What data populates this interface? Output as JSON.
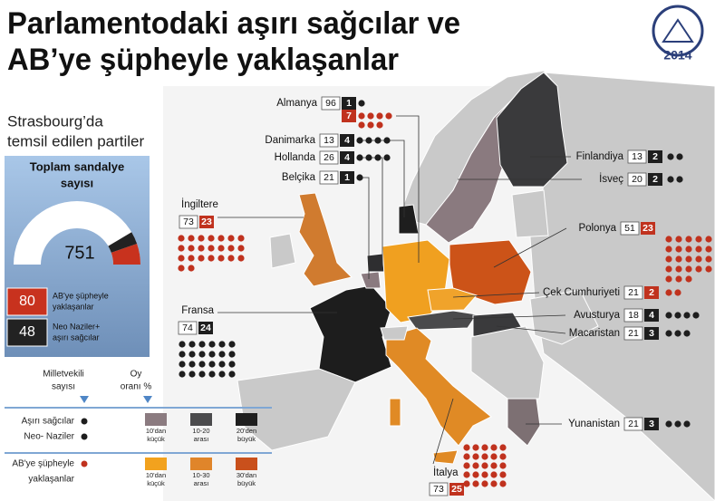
{
  "header": {
    "title_line1": "Parlamentodaki aşırı sağcılar ve",
    "title_line2": "AB’ye şüpheyle yaklaşanlar",
    "logo_year": "2014"
  },
  "sidebar": {
    "subtitle_line1": "Strasbourg’da",
    "subtitle_line2": "temsil edilen partiler",
    "gauge_title_line1": "Toplam sandalye",
    "gauge_title_line2": "sayısı",
    "total": 751,
    "groups": [
      {
        "value": 80,
        "label_line1": "AB'ye şüpheyle",
        "label_line2": "yaklaşanlar",
        "color": "#c8321e"
      },
      {
        "value": 48,
        "label_line1": "Neo Naziler+",
        "label_line2": "aşırı sağcılar",
        "color": "#222222"
      }
    ]
  },
  "countries": [
    {
      "name": "Almanya",
      "seats": 96,
      "groups": [
        {
          "value": 1,
          "color": "#1e1e1e"
        },
        {
          "value": 7,
          "color": "#c0321e"
        }
      ]
    },
    {
      "name": "Danimarka",
      "seats": 13,
      "groups": [
        {
          "value": 4,
          "color": "#1e1e1e"
        }
      ]
    },
    {
      "name": "Hollanda",
      "seats": 26,
      "groups": [
        {
          "value": 4,
          "color": "#1e1e1e"
        }
      ]
    },
    {
      "name": "Belçika",
      "seats": 21,
      "groups": [
        {
          "value": 1,
          "color": "#1e1e1e"
        }
      ]
    },
    {
      "name": "İngiltere",
      "seats": 73,
      "groups": [
        {
          "value": 23,
          "color": "#c0321e"
        }
      ]
    },
    {
      "name": "Fransa",
      "seats": 74,
      "groups": [
        {
          "value": 24,
          "color": "#1e1e1e"
        }
      ]
    },
    {
      "name": "Finlandiya",
      "seats": 13,
      "groups": [
        {
          "value": 2,
          "color": "#1e1e1e"
        }
      ]
    },
    {
      "name": "İsveç",
      "seats": 20,
      "groups": [
        {
          "value": 2,
          "color": "#1e1e1e"
        }
      ]
    },
    {
      "name": "Polonya",
      "seats": 51,
      "groups": [
        {
          "value": 23,
          "color": "#c0321e"
        }
      ]
    },
    {
      "name": "Çek Cumhuriyeti",
      "seats": 21,
      "groups": [
        {
          "value": 2,
          "color": "#c0321e"
        }
      ]
    },
    {
      "name": "Avusturya",
      "seats": 18,
      "groups": [
        {
          "value": 4,
          "color": "#1e1e1e"
        }
      ]
    },
    {
      "name": "Macaristan",
      "seats": 21,
      "groups": [
        {
          "value": 3,
          "color": "#1e1e1e"
        }
      ]
    },
    {
      "name": "Yunanistan",
      "seats": 21,
      "groups": [
        {
          "value": 3,
          "color": "#1e1e1e"
        }
      ]
    },
    {
      "name": "İtalya",
      "seats": 73,
      "groups": [
        {
          "value": 25,
          "color": "#c0321e"
        }
      ]
    }
  ],
  "legend": {
    "col1_line1": "Milletvekili",
    "col1_line2": "sayısı",
    "col2_line1": "Oy",
    "col2_line2": "oranı %",
    "far_right_labels": [
      "Aşırı sağcılar",
      "Neo- Naziler"
    ],
    "far_right_swatches": [
      {
        "color": "#8b7b80",
        "lines": [
          "10'dan",
          "küçük"
        ]
      },
      {
        "color": "#4b4b4d",
        "lines": [
          "10-20",
          "arası"
        ]
      },
      {
        "color": "#1e1e1e",
        "lines": [
          "20'den",
          "büyük"
        ]
      }
    ],
    "eurosceptic_labels": [
      "AB'ye şüpheyle",
      "yaklaşanlar"
    ],
    "eurosceptic_swatches": [
      {
        "color": "#f2a21e",
        "lines": [
          "10'dan",
          "küçük"
        ]
      },
      {
        "color": "#e0852a",
        "lines": [
          "10-30",
          "arası"
        ]
      },
      {
        "color": "#c9501c",
        "lines": [
          "30'dan",
          "büyük"
        ]
      }
    ]
  }
}
